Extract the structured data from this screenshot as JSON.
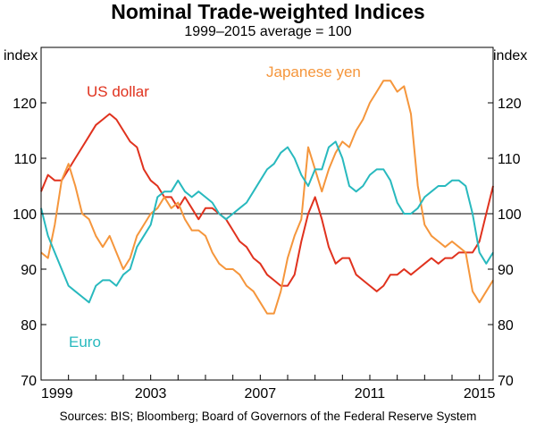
{
  "chart_data": {
    "type": "line",
    "title": "Nominal Trade-weighted Indices",
    "subtitle": "1999–2015 average = 100",
    "ylabel_left": "index",
    "ylabel_right": "index",
    "ylim": [
      70,
      130
    ],
    "yticks": [
      70,
      80,
      90,
      100,
      110,
      120
    ],
    "xlim": [
      1999.0,
      2015.5
    ],
    "xticks": [
      {
        "value": 1999.0,
        "label": "1999"
      },
      {
        "value": 2003.0,
        "label": "2003"
      },
      {
        "value": 2007.0,
        "label": "2007"
      },
      {
        "value": 2011.0,
        "label": "2011"
      },
      {
        "value": 2015.0,
        "label": "2015"
      }
    ],
    "reference_line": 100,
    "series": [
      {
        "name": "US dollar",
        "label": "US dollar",
        "color": "#e0321e",
        "x": [
          1999.0,
          1999.25,
          1999.5,
          1999.75,
          2000.0,
          2000.25,
          2000.5,
          2000.75,
          2001.0,
          2001.25,
          2001.5,
          2001.75,
          2002.0,
          2002.25,
          2002.5,
          2002.75,
          2003.0,
          2003.25,
          2003.5,
          2003.75,
          2004.0,
          2004.25,
          2004.5,
          2004.75,
          2005.0,
          2005.25,
          2005.5,
          2005.75,
          2006.0,
          2006.25,
          2006.5,
          2006.75,
          2007.0,
          2007.25,
          2007.5,
          2007.75,
          2008.0,
          2008.25,
          2008.5,
          2008.75,
          2009.0,
          2009.25,
          2009.5,
          2009.75,
          2010.0,
          2010.25,
          2010.5,
          2010.75,
          2011.0,
          2011.25,
          2011.5,
          2011.75,
          2012.0,
          2012.25,
          2012.5,
          2012.75,
          2013.0,
          2013.25,
          2013.5,
          2013.75,
          2014.0,
          2014.25,
          2014.5,
          2014.75,
          2015.0,
          2015.25,
          2015.5
        ],
        "values": [
          104,
          107,
          106,
          106,
          108,
          110,
          112,
          114,
          116,
          117,
          118,
          117,
          115,
          113,
          112,
          108,
          106,
          105,
          103,
          103,
          101,
          103,
          101,
          99,
          101,
          101,
          100,
          99,
          97,
          95,
          94,
          92,
          91,
          89,
          88,
          87,
          87,
          89,
          95,
          100,
          103,
          99,
          94,
          91,
          92,
          92,
          89,
          88,
          87,
          86,
          87,
          89,
          89,
          90,
          89,
          90,
          91,
          92,
          91,
          92,
          92,
          93,
          93,
          93,
          95,
          100,
          105
        ]
      },
      {
        "name": "Japanese yen",
        "label": "Japanese yen",
        "color": "#f5963c",
        "x": [
          1999.0,
          1999.25,
          1999.5,
          1999.75,
          2000.0,
          2000.25,
          2000.5,
          2000.75,
          2001.0,
          2001.25,
          2001.5,
          2001.75,
          2002.0,
          2002.25,
          2002.5,
          2002.75,
          2003.0,
          2003.25,
          2003.5,
          2003.75,
          2004.0,
          2004.25,
          2004.5,
          2004.75,
          2005.0,
          2005.25,
          2005.5,
          2005.75,
          2006.0,
          2006.25,
          2006.5,
          2006.75,
          2007.0,
          2007.25,
          2007.5,
          2007.75,
          2008.0,
          2008.25,
          2008.5,
          2008.75,
          2009.0,
          2009.25,
          2009.5,
          2009.75,
          2010.0,
          2010.25,
          2010.5,
          2010.75,
          2011.0,
          2011.25,
          2011.5,
          2011.75,
          2012.0,
          2012.25,
          2012.5,
          2012.75,
          2013.0,
          2013.25,
          2013.5,
          2013.75,
          2014.0,
          2014.25,
          2014.5,
          2014.75,
          2015.0,
          2015.25,
          2015.5
        ],
        "values": [
          93,
          92,
          98,
          106,
          109,
          105,
          100,
          99,
          96,
          94,
          96,
          93,
          90,
          92,
          96,
          98,
          100,
          101,
          103,
          101,
          102,
          99,
          97,
          97,
          96,
          93,
          91,
          90,
          90,
          89,
          87,
          86,
          84,
          82,
          82,
          86,
          92,
          96,
          99,
          112,
          108,
          104,
          108,
          111,
          113,
          112,
          115,
          117,
          120,
          122,
          124,
          124,
          122,
          123,
          118,
          105,
          98,
          96,
          95,
          94,
          95,
          94,
          93,
          86,
          84,
          86,
          88
        ]
      },
      {
        "name": "Euro",
        "label": "Euro",
        "color": "#28b9be",
        "x": [
          1999.0,
          1999.25,
          1999.5,
          1999.75,
          2000.0,
          2000.25,
          2000.5,
          2000.75,
          2001.0,
          2001.25,
          2001.5,
          2001.75,
          2002.0,
          2002.25,
          2002.5,
          2002.75,
          2003.0,
          2003.25,
          2003.5,
          2003.75,
          2004.0,
          2004.25,
          2004.5,
          2004.75,
          2005.0,
          2005.25,
          2005.5,
          2005.75,
          2006.0,
          2006.25,
          2006.5,
          2006.75,
          2007.0,
          2007.25,
          2007.5,
          2007.75,
          2008.0,
          2008.25,
          2008.5,
          2008.75,
          2009.0,
          2009.25,
          2009.5,
          2009.75,
          2010.0,
          2010.25,
          2010.5,
          2010.75,
          2011.0,
          2011.25,
          2011.5,
          2011.75,
          2012.0,
          2012.25,
          2012.5,
          2012.75,
          2013.0,
          2013.25,
          2013.5,
          2013.75,
          2014.0,
          2014.25,
          2014.5,
          2014.75,
          2015.0,
          2015.25,
          2015.5
        ],
        "values": [
          101,
          96,
          93,
          90,
          87,
          86,
          85,
          84,
          87,
          88,
          88,
          87,
          89,
          90,
          94,
          96,
          98,
          103,
          104,
          104,
          106,
          104,
          103,
          104,
          103,
          102,
          100,
          99,
          100,
          101,
          102,
          104,
          106,
          108,
          109,
          111,
          112,
          110,
          107,
          105,
          108,
          108,
          112,
          113,
          110,
          105,
          104,
          105,
          107,
          108,
          108,
          106,
          102,
          100,
          100,
          101,
          103,
          104,
          105,
          105,
          106,
          106,
          105,
          100,
          93,
          91,
          93
        ]
      }
    ],
    "annotations": [
      {
        "text": "US dollar",
        "series": "US dollar"
      },
      {
        "text": "Japanese yen",
        "series": "Japanese yen"
      },
      {
        "text": "Euro",
        "series": "Euro"
      }
    ],
    "source": "Sources:   BIS; Bloomberg; Board of Governors of the Federal Reserve System"
  }
}
